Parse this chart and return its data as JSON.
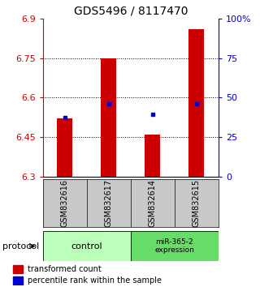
{
  "title": "GDS5496 / 8117470",
  "samples": [
    "GSM832616",
    "GSM832617",
    "GSM832614",
    "GSM832615"
  ],
  "red_values": [
    6.52,
    6.75,
    6.46,
    6.86
  ],
  "blue_values": [
    6.525,
    6.575,
    6.535,
    6.575
  ],
  "ymin": 6.3,
  "ymax": 6.9,
  "yticks_left": [
    6.3,
    6.45,
    6.6,
    6.75,
    6.9
  ],
  "yticks_left_labels": [
    "6.3",
    "6.45",
    "6.6",
    "6.75",
    "6.9"
  ],
  "right_yticks_pct": [
    0,
    25,
    50,
    75,
    100
  ],
  "right_ylabels": [
    "0",
    "25",
    "50",
    "75",
    "100%"
  ],
  "dotted_lines": [
    6.45,
    6.6,
    6.75
  ],
  "bar_color": "#cc0000",
  "marker_color": "#0000cc",
  "bar_width": 0.35,
  "ctrl_color": "#bbffbb",
  "mir_color": "#66dd66",
  "gray_color": "#c8c8c8",
  "protocol_label": "protocol",
  "legend1": "transformed count",
  "legend2": "percentile rank within the sample",
  "title_fontsize": 10,
  "tick_fontsize": 8,
  "sample_fontsize": 7,
  "group_fontsize": 8,
  "legend_fontsize": 7
}
